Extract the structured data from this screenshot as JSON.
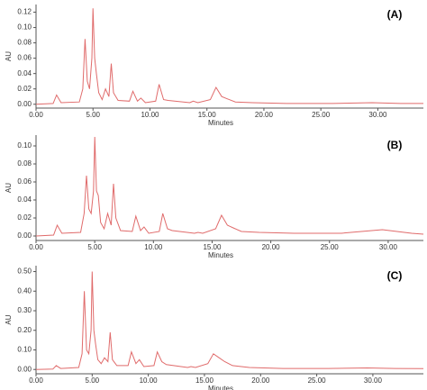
{
  "chart_data": [
    {
      "type": "line",
      "annotation": "(A)",
      "ylabel": "AU",
      "xlabel": "Minutes",
      "color": "#e06b6b",
      "x": [
        0,
        1.5,
        1.8,
        2.2,
        3.8,
        4.1,
        4.3,
        4.5,
        4.7,
        4.9,
        5.0,
        5.15,
        5.3,
        5.5,
        5.8,
        6.1,
        6.4,
        6.6,
        6.8,
        7.2,
        8.2,
        8.5,
        8.9,
        9.2,
        9.6,
        10.5,
        10.8,
        11.2,
        11.6,
        13.5,
        13.8,
        14.2,
        15.3,
        15.8,
        16.3,
        16.8,
        17.5,
        19,
        22,
        26,
        29.5,
        32,
        34
      ],
      "values": [
        0,
        0.001,
        0.012,
        0.002,
        0.003,
        0.02,
        0.085,
        0.03,
        0.02,
        0.06,
        0.125,
        0.06,
        0.04,
        0.015,
        0.006,
        0.02,
        0.01,
        0.053,
        0.015,
        0.005,
        0.004,
        0.017,
        0.004,
        0.008,
        0.002,
        0.004,
        0.026,
        0.006,
        0.005,
        0.002,
        0.004,
        0.002,
        0.006,
        0.022,
        0.01,
        0.007,
        0.003,
        0.002,
        0.001,
        0.001,
        0.002,
        0.001,
        0.001
      ],
      "xlim": [
        0,
        34
      ],
      "ylim": [
        -0.005,
        0.13
      ],
      "xticks": [
        {
          "value": 0,
          "label": "0.00"
        },
        {
          "value": 5,
          "label": "5.00"
        },
        {
          "value": 10,
          "label": "10.00"
        },
        {
          "value": 15,
          "label": "15.00"
        },
        {
          "value": 20,
          "label": "20.00"
        },
        {
          "value": 25,
          "label": "25.00"
        },
        {
          "value": 30,
          "label": "30.00"
        }
      ],
      "yticks": [
        {
          "value": 0,
          "label": "0.00"
        },
        {
          "value": 0.02,
          "label": "0.02"
        },
        {
          "value": 0.04,
          "label": "0.04"
        },
        {
          "value": 0.06,
          "label": "0.06"
        },
        {
          "value": 0.08,
          "label": "0.08"
        },
        {
          "value": 0.1,
          "label": "0.10"
        },
        {
          "value": 0.12,
          "label": "0.12"
        }
      ]
    },
    {
      "type": "line",
      "annotation": "(B)",
      "ylabel": "AU",
      "xlabel": "Minutes",
      "color": "#e06b6b",
      "x": [
        0,
        1.5,
        1.8,
        2.2,
        3.8,
        4.1,
        4.3,
        4.5,
        4.7,
        4.9,
        5.0,
        5.15,
        5.3,
        5.5,
        5.8,
        6.1,
        6.4,
        6.6,
        6.8,
        7.2,
        8.2,
        8.5,
        8.9,
        9.2,
        9.6,
        10.5,
        10.8,
        11.2,
        11.6,
        13.5,
        13.8,
        14.2,
        15.3,
        15.8,
        16.3,
        16.8,
        17.5,
        19,
        22,
        26,
        29.5,
        32,
        33
      ],
      "values": [
        0,
        0.001,
        0.012,
        0.003,
        0.004,
        0.025,
        0.067,
        0.03,
        0.025,
        0.05,
        0.11,
        0.05,
        0.045,
        0.015,
        0.008,
        0.025,
        0.012,
        0.058,
        0.02,
        0.006,
        0.005,
        0.022,
        0.006,
        0.01,
        0.003,
        0.005,
        0.025,
        0.008,
        0.006,
        0.003,
        0.004,
        0.003,
        0.008,
        0.023,
        0.012,
        0.009,
        0.005,
        0.004,
        0.003,
        0.003,
        0.007,
        0.003,
        0.002
      ],
      "xlim": [
        0,
        33
      ],
      "ylim": [
        -0.005,
        0.112
      ],
      "xticks": [
        {
          "value": 0,
          "label": "0.00"
        },
        {
          "value": 5,
          "label": "5.00"
        },
        {
          "value": 10,
          "label": "10.00"
        },
        {
          "value": 15,
          "label": "15.00"
        },
        {
          "value": 20,
          "label": "20.00"
        },
        {
          "value": 25,
          "label": "25.00"
        },
        {
          "value": 30,
          "label": "30.00"
        }
      ],
      "yticks": [
        {
          "value": 0,
          "label": "0.00"
        },
        {
          "value": 0.02,
          "label": "0.02"
        },
        {
          "value": 0.04,
          "label": "0.04"
        },
        {
          "value": 0.06,
          "label": "0.06"
        },
        {
          "value": 0.08,
          "label": "0.08"
        },
        {
          "value": 0.1,
          "label": "0.10"
        }
      ]
    },
    {
      "type": "line",
      "annotation": "(C)",
      "ylabel": "AU",
      "xlabel": "Minutes",
      "color": "#e06b6b",
      "x": [
        0,
        1.5,
        1.8,
        2.2,
        3.8,
        4.1,
        4.3,
        4.5,
        4.7,
        4.9,
        5.0,
        5.15,
        5.3,
        5.5,
        5.8,
        6.1,
        6.4,
        6.6,
        6.8,
        7.2,
        8.2,
        8.5,
        8.9,
        9.2,
        9.6,
        10.5,
        10.8,
        11.2,
        11.6,
        13.5,
        13.8,
        14.2,
        15.3,
        15.8,
        16.3,
        16.8,
        17.5,
        19,
        22,
        26,
        29.5,
        32,
        34.5
      ],
      "values": [
        0,
        0.002,
        0.02,
        0.005,
        0.01,
        0.08,
        0.4,
        0.1,
        0.08,
        0.2,
        0.5,
        0.2,
        0.13,
        0.05,
        0.03,
        0.06,
        0.04,
        0.19,
        0.05,
        0.02,
        0.02,
        0.09,
        0.03,
        0.05,
        0.015,
        0.02,
        0.09,
        0.04,
        0.025,
        0.01,
        0.015,
        0.01,
        0.03,
        0.08,
        0.06,
        0.04,
        0.02,
        0.01,
        0.005,
        0.005,
        0.008,
        0.005,
        0.004
      ],
      "xlim": [
        0,
        34.5
      ],
      "ylim": [
        -0.022,
        0.53
      ],
      "xticks": [
        {
          "value": 0,
          "label": "0.00"
        },
        {
          "value": 5,
          "label": "5.00"
        },
        {
          "value": 10,
          "label": "10.00"
        },
        {
          "value": 15,
          "label": "15.00"
        },
        {
          "value": 20,
          "label": "20.00"
        },
        {
          "value": 25,
          "label": "25.00"
        },
        {
          "value": 30,
          "label": "30.00"
        }
      ],
      "yticks": [
        {
          "value": 0,
          "label": "0.00"
        },
        {
          "value": 0.1,
          "label": "0.10"
        },
        {
          "value": 0.2,
          "label": "0.20"
        },
        {
          "value": 0.3,
          "label": "0.30"
        },
        {
          "value": 0.4,
          "label": "0.40"
        },
        {
          "value": 0.5,
          "label": "0.50"
        }
      ]
    }
  ]
}
